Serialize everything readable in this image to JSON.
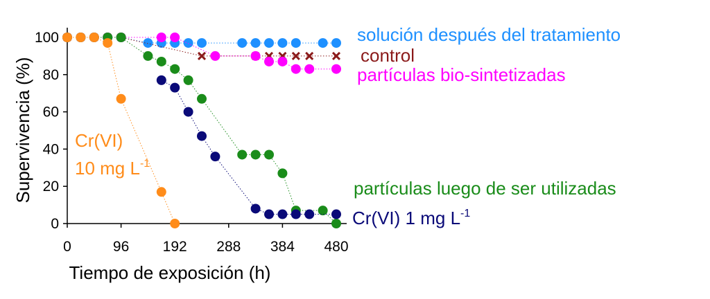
{
  "chart_data": {
    "type": "scatter",
    "title": "",
    "xlabel": "Tiempo de exposición (h)",
    "ylabel": "Supervivencia (%)",
    "xlim": [
      0,
      505
    ],
    "ylim": [
      0,
      100
    ],
    "xticks": [
      "0",
      "96",
      "192",
      "288",
      "384",
      "480"
    ],
    "xtick_values": [
      0,
      96,
      192,
      288,
      384,
      480
    ],
    "yticks": [
      "0",
      "20",
      "40",
      "60",
      "80",
      "100"
    ],
    "ytick_values": [
      0,
      20,
      40,
      60,
      80,
      100
    ],
    "grid": false,
    "legend": "none (series labelled directly on the chart)",
    "series": [
      {
        "label_parts": [
          "solución después del tratamiento"
        ],
        "color": "#1E90FF",
        "marker": "circle",
        "connected": true,
        "points": [
          [
            0,
            100
          ],
          [
            24,
            100
          ],
          [
            48,
            100
          ],
          [
            72,
            100
          ],
          [
            96,
            100
          ],
          [
            144,
            97
          ],
          [
            168,
            97
          ],
          [
            192,
            97
          ],
          [
            216,
            97
          ],
          [
            240,
            97
          ],
          [
            312,
            97
          ],
          [
            336,
            97
          ],
          [
            360,
            97
          ],
          [
            384,
            97
          ],
          [
            408,
            97
          ],
          [
            456,
            97
          ],
          [
            480,
            97
          ]
        ]
      },
      {
        "label_parts": [
          "control"
        ],
        "color": "#8B1A1A",
        "marker": "x",
        "connected": true,
        "points": [
          [
            0,
            100
          ],
          [
            24,
            100
          ],
          [
            48,
            100
          ],
          [
            72,
            100
          ],
          [
            96,
            100
          ],
          [
            240,
            90
          ],
          [
            336,
            90
          ],
          [
            360,
            90
          ],
          [
            384,
            90
          ],
          [
            408,
            90
          ],
          [
            432,
            90
          ],
          [
            480,
            90
          ]
        ]
      },
      {
        "label_parts": [
          "partículas bio-sintetizadas"
        ],
        "color": "#FF00FF",
        "marker": "circle",
        "connected": true,
        "points": [
          [
            0,
            100
          ],
          [
            24,
            100
          ],
          [
            48,
            100
          ],
          [
            72,
            100
          ],
          [
            96,
            100
          ],
          [
            168,
            100
          ],
          [
            192,
            100
          ],
          [
            264,
            90
          ],
          [
            336,
            90
          ],
          [
            360,
            87
          ],
          [
            384,
            87
          ],
          [
            408,
            83
          ],
          [
            432,
            83
          ],
          [
            480,
            83
          ]
        ]
      },
      {
        "label_parts": [
          "partículas luego de ser utilizadas"
        ],
        "color": "#1A8C1A",
        "marker": "circle",
        "connected": true,
        "points": [
          [
            0,
            100
          ],
          [
            24,
            100
          ],
          [
            48,
            100
          ],
          [
            72,
            100
          ],
          [
            96,
            100
          ],
          [
            144,
            90
          ],
          [
            168,
            87
          ],
          [
            192,
            83
          ],
          [
            216,
            77
          ],
          [
            240,
            67
          ],
          [
            312,
            37
          ],
          [
            336,
            37
          ],
          [
            360,
            37
          ],
          [
            384,
            27
          ],
          [
            408,
            7
          ],
          [
            456,
            7
          ],
          [
            480,
            0
          ]
        ]
      },
      {
        "label_parts": [
          "Cr(VI) 1 mg L",
          "-1"
        ],
        "color": "#0A0A78",
        "marker": "circle",
        "connected": true,
        "points": [
          [
            168,
            77
          ],
          [
            192,
            73
          ],
          [
            216,
            60
          ],
          [
            240,
            47
          ],
          [
            264,
            36
          ],
          [
            336,
            8
          ],
          [
            360,
            5
          ],
          [
            384,
            5
          ],
          [
            408,
            5
          ],
          [
            432,
            5
          ],
          [
            480,
            5
          ]
        ]
      },
      {
        "label_parts": [
          "Cr(VI)",
          "10 mg L",
          "-1"
        ],
        "color": "#FF8C1A",
        "marker": "circle",
        "connected": true,
        "points": [
          [
            0,
            100
          ],
          [
            24,
            100
          ],
          [
            48,
            100
          ],
          [
            72,
            97
          ],
          [
            96,
            67
          ],
          [
            168,
            17
          ],
          [
            192,
            0
          ]
        ]
      }
    ]
  }
}
